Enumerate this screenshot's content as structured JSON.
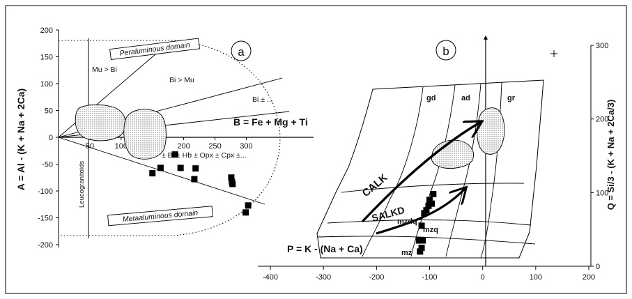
{
  "chart_data": [
    {
      "panel_label": "a",
      "type": "scatter",
      "ylabel": "A = Al - (K + Na + 2Ca)",
      "xlabel": "B = Fe + Mg + Ti",
      "y_ticks": [
        "200",
        "150",
        "100",
        "50",
        "0",
        "-50",
        "-100",
        "-150",
        "-200"
      ],
      "x_ticks": [
        "50",
        "100",
        "150",
        "200",
        "250",
        "300"
      ],
      "xlim": [
        0,
        330
      ],
      "ylim": [
        -200,
        200
      ],
      "annotations": {
        "peraluminous": "Peraluminous domain",
        "metaaluminous": "Metaaluminous domain",
        "mu_bi": "Mu > Bi",
        "bi_mu": "Bi > Mu",
        "bi_pm": "Bi ± ...",
        "mafic": "± Bi ± Hb ± Opx ± Cpx ±...",
        "leuco": "Leucogranitoids"
      },
      "points": [
        {
          "x": 150,
          "y": -67
        },
        {
          "x": 163,
          "y": -57
        },
        {
          "x": 186,
          "y": -32
        },
        {
          "x": 195,
          "y": -57
        },
        {
          "x": 217,
          "y": -78
        },
        {
          "x": 219,
          "y": -58
        },
        {
          "x": 276,
          "y": -75
        },
        {
          "x": 277,
          "y": -83
        },
        {
          "x": 278,
          "y": -87
        },
        {
          "x": 299,
          "y": -140
        },
        {
          "x": 303,
          "y": -127
        }
      ]
    },
    {
      "panel_label": "b",
      "type": "scatter",
      "xlabel": "P = K - (Na + Ca)",
      "ylabel": "Q = Si/3 - (K + Na + 2Ca/3)",
      "x_ticks": [
        "-400",
        "-300",
        "-200",
        "-100",
        "0",
        "100",
        "200"
      ],
      "y_ticks": [
        "0",
        "100",
        "200",
        "300"
      ],
      "xlim": [
        -400,
        200
      ],
      "ylim": [
        0,
        300
      ],
      "annotations": {
        "gd": "gd",
        "ad": "ad",
        "gr": "gr",
        "mzdq": "mzdq",
        "mzq": "mzq",
        "mz": "mz",
        "calk": "CALK",
        "salkd": "SALKD"
      },
      "points": [
        {
          "x": -118,
          "y": 20
        },
        {
          "x": -115,
          "y": 25
        },
        {
          "x": -120,
          "y": 35
        },
        {
          "x": -113,
          "y": 35
        },
        {
          "x": -115,
          "y": 55
        },
        {
          "x": -110,
          "y": 72
        },
        {
          "x": -106,
          "y": 76
        },
        {
          "x": -102,
          "y": 82
        },
        {
          "x": -96,
          "y": 85
        },
        {
          "x": -100,
          "y": 90
        },
        {
          "x": -93,
          "y": 98
        }
      ]
    }
  ]
}
